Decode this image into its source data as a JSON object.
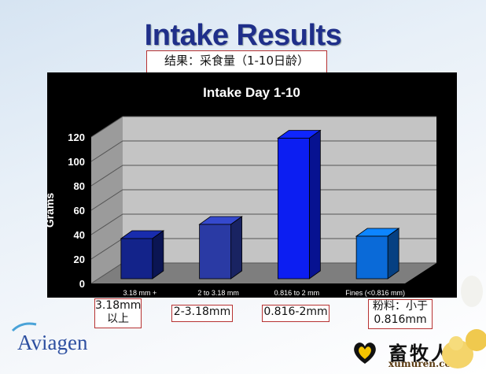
{
  "slide": {
    "title": "Intake Results",
    "subtitle_cn": "结果：采食量（1-10日龄）",
    "logo": "Aviagen",
    "watermark": {
      "text": "畜牧人",
      "url": "xumuren.com",
      "icon": "heart-icon"
    }
  },
  "chart_data": {
    "type": "bar",
    "title": "Intake Day 1-10",
    "xlabel": "",
    "ylabel": "Grams",
    "ylim": [
      0,
      120
    ],
    "yticks": [
      "0",
      "20",
      "40",
      "60",
      "80",
      "100",
      "120"
    ],
    "categories": [
      "3.18 mm +",
      "2 to 3.18 mm",
      "0.816 to 2 mm",
      "Fines (<0.816 mm)"
    ],
    "values": [
      34,
      46,
      119,
      36
    ],
    "bar_colors": [
      "#13238a",
      "#2a3aa4",
      "#0c1ef2",
      "#0a6ad8"
    ],
    "grid": true,
    "style": "3d"
  },
  "annotations_cn": [
    "3.18mm\n以上",
    "2-3.18mm",
    "0.816-2mm",
    "粉料：小于\n0.816mm"
  ]
}
